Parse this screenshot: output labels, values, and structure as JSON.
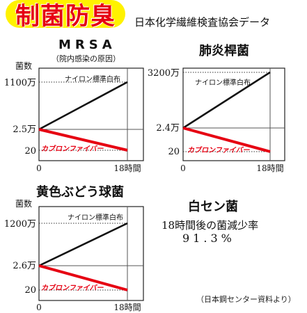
{
  "header": {
    "headline": "制菌防臭",
    "source": "日本化学繊維検査協会データ"
  },
  "series_labels": {
    "nylon": "ナイロン標準白布",
    "carbon": "カブロンファイバー"
  },
  "colors": {
    "accent_red": "#e60012",
    "highlight_yellow": "#fff200",
    "line_black": "#111111"
  },
  "chart_data": [
    {
      "type": "line",
      "title": "MRSA",
      "subtitle": "（院内感染の原因）",
      "ylabel": "菌数",
      "x": [
        0,
        18
      ],
      "x_tick_labels": [
        "0",
        "18時間"
      ],
      "y_tick_labels": [
        "1100万",
        "2.5万",
        "20"
      ],
      "series": [
        {
          "name": "ナイロン標準白布",
          "values": [
            25000,
            11000000
          ]
        },
        {
          "name": "カブロンファイバー",
          "values": [
            25000,
            20
          ]
        }
      ]
    },
    {
      "type": "line",
      "title": "肺炎桿菌",
      "subtitle": "",
      "ylabel": "",
      "x": [
        0,
        18
      ],
      "x_tick_labels": [
        "0",
        "18時間"
      ],
      "y_tick_labels": [
        "3200万",
        "2.4万",
        "20"
      ],
      "series": [
        {
          "name": "ナイロン標準白布",
          "values": [
            24000,
            32000000
          ]
        },
        {
          "name": "カブロンファイバー",
          "values": [
            24000,
            20
          ]
        }
      ]
    },
    {
      "type": "line",
      "title": "黄色ぶどう球菌",
      "subtitle": "",
      "ylabel": "菌数",
      "x": [
        0,
        18
      ],
      "x_tick_labels": [
        "0",
        "18時間"
      ],
      "y_tick_labels": [
        "1200万",
        "2.6万",
        "20"
      ],
      "series": [
        {
          "name": "ナイロン標準白布",
          "values": [
            26000,
            12000000
          ]
        },
        {
          "name": "カブロンファイバー",
          "values": [
            26000,
            20
          ]
        }
      ]
    }
  ],
  "hakusen": {
    "title": "白セン菌",
    "reduction_label": "18時間後の菌減少率",
    "reduction_value": "91.3%"
  },
  "source_bottom": "（日本鋼センター資料より）"
}
